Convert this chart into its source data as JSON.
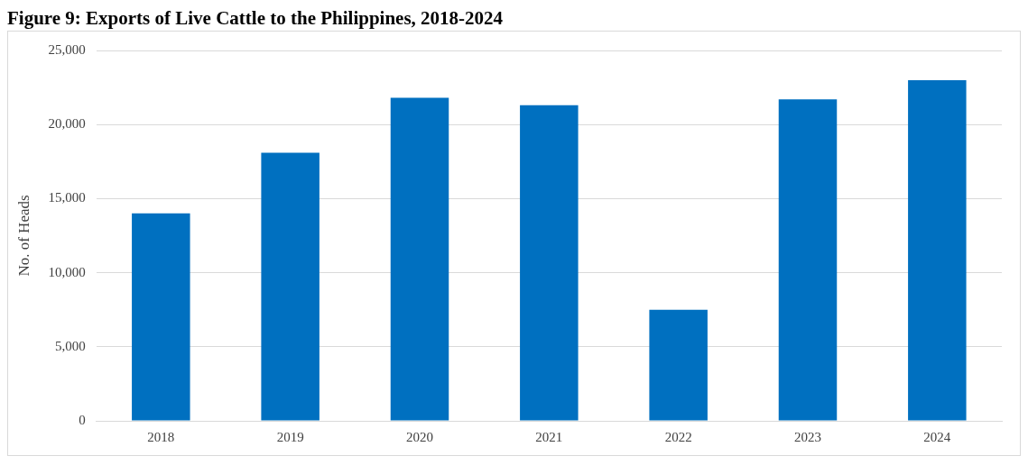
{
  "chart_data": {
    "type": "bar",
    "title": "Figure 9: Exports of Live Cattle to the Philippines, 2018-2024",
    "ylabel": "No. of Heads",
    "categories": [
      "2018",
      "2019",
      "2020",
      "2021",
      "2022",
      "2023",
      "2024"
    ],
    "values": [
      14000,
      18100,
      21800,
      21300,
      7500,
      21700,
      23000
    ],
    "color": "#0070c0",
    "ylim": [
      0,
      25000
    ],
    "yticks": [
      {
        "value": 0,
        "label": "0"
      },
      {
        "value": 5000,
        "label": "5,000"
      },
      {
        "value": 10000,
        "label": "10,000"
      },
      {
        "value": 15000,
        "label": "15,000"
      },
      {
        "value": 20000,
        "label": "20,000"
      },
      {
        "value": 25000,
        "label": "25,000"
      }
    ],
    "grid": "y"
  }
}
